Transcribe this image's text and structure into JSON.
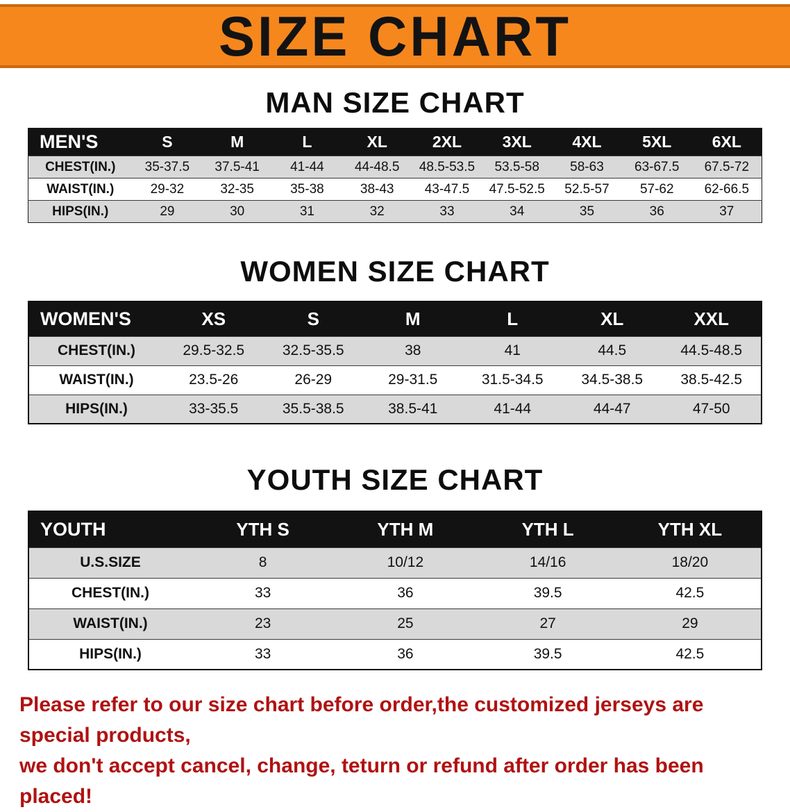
{
  "banner": {
    "title": "SIZE CHART"
  },
  "colors": {
    "banner_bg": "#F6871D",
    "banner_border": "#C96A10",
    "header_bg": "#121212",
    "row_gray": "#d9d9d9",
    "note_red": "#B01212"
  },
  "sections": [
    {
      "heading": "MAN SIZE CHART",
      "table": {
        "header": [
          "MEN'S",
          "S",
          "M",
          "L",
          "XL",
          "2XL",
          "3XL",
          "4XL",
          "5XL",
          "6XL"
        ],
        "rows": [
          [
            "CHEST(IN.)",
            "35-37.5",
            "37.5-41",
            "41-44",
            "44-48.5",
            "48.5-53.5",
            "53.5-58",
            "58-63",
            "63-67.5",
            "67.5-72"
          ],
          [
            "WAIST(IN.)",
            "29-32",
            "32-35",
            "35-38",
            "38-43",
            "43-47.5",
            "47.5-52.5",
            "52.5-57",
            "57-62",
            "62-66.5"
          ],
          [
            "HIPS(IN.)",
            "29",
            "30",
            "31",
            "32",
            "33",
            "34",
            "35",
            "36",
            "37"
          ]
        ]
      }
    },
    {
      "heading": "WOMEN SIZE CHART",
      "table": {
        "header": [
          "WOMEN'S",
          "XS",
          "S",
          "M",
          "L",
          "XL",
          "XXL"
        ],
        "rows": [
          [
            "CHEST(IN.)",
            "29.5-32.5",
            "32.5-35.5",
            "38",
            "41",
            "44.5",
            "44.5-48.5"
          ],
          [
            "WAIST(IN.)",
            "23.5-26",
            "26-29",
            "29-31.5",
            "31.5-34.5",
            "34.5-38.5",
            "38.5-42.5"
          ],
          [
            "HIPS(IN.)",
            "33-35.5",
            "35.5-38.5",
            "38.5-41",
            "41-44",
            "44-47",
            "47-50"
          ]
        ]
      }
    },
    {
      "heading": "YOUTH SIZE CHART",
      "table": {
        "header": [
          "YOUTH",
          "YTH S",
          "YTH M",
          "YTH L",
          "YTH XL"
        ],
        "rows": [
          [
            "U.S.SIZE",
            "8",
            "10/12",
            "14/16",
            "18/20"
          ],
          [
            "CHEST(IN.)",
            "33",
            "36",
            "39.5",
            "42.5"
          ],
          [
            "WAIST(IN.)",
            "23",
            "25",
            "27",
            "29"
          ],
          [
            "HIPS(IN.)",
            "33",
            "36",
            "39.5",
            "42.5"
          ]
        ]
      }
    }
  ],
  "footer": {
    "line1": "Please refer to our size chart before order,the customized jerseys are special products,",
    "line2": "we don't accept cancel, change, teturn or refund after order has been placed!"
  }
}
